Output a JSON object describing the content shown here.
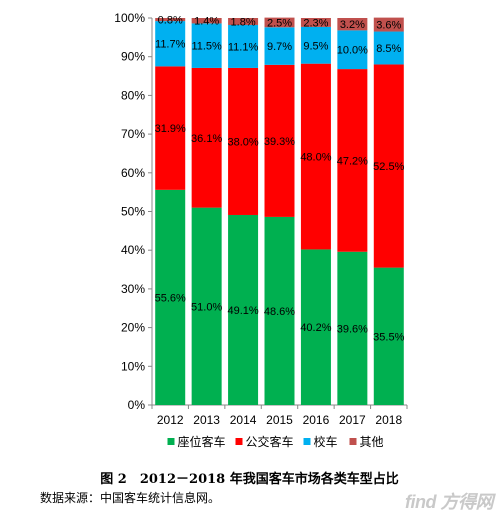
{
  "chart_data": {
    "type": "bar",
    "stacked": true,
    "title": "",
    "xlabel": "",
    "ylabel": "",
    "categories": [
      "2012",
      "2013",
      "2014",
      "2015",
      "2016",
      "2017",
      "2018"
    ],
    "ylim": [
      0,
      100
    ],
    "yticks": [
      "0%",
      "10%",
      "20%",
      "30%",
      "40%",
      "50%",
      "60%",
      "70%",
      "80%",
      "90%",
      "100%"
    ],
    "legend_position": "bottom",
    "grid": false,
    "series": [
      {
        "name": "座位客车",
        "color": "#00b050",
        "values": [
          55.6,
          51.0,
          49.1,
          48.6,
          40.2,
          39.6,
          35.5
        ],
        "labels": [
          "55.6%",
          "51.0%",
          "49.1%",
          "48.6%",
          "40.2%",
          "39.6%",
          "35.5%"
        ]
      },
      {
        "name": "公交客车",
        "color": "#ff0000",
        "values": [
          31.9,
          36.1,
          38.0,
          39.3,
          48.0,
          47.2,
          52.5
        ],
        "labels": [
          "31.9%",
          "36.1%",
          "38.0%",
          "39.3%",
          "48.0%",
          "47.2%",
          "52.5%"
        ]
      },
      {
        "name": "校车",
        "color": "#00b0f0",
        "values": [
          11.7,
          11.5,
          11.1,
          9.7,
          9.5,
          10.0,
          8.5
        ],
        "labels": [
          "11.7%",
          "11.5%",
          "11.1%",
          "9.7%",
          "9.5%",
          "10.0%",
          "8.5%"
        ]
      },
      {
        "name": "其他",
        "color": "#c0504d",
        "values": [
          0.8,
          1.4,
          1.8,
          2.5,
          2.3,
          3.2,
          3.6
        ],
        "labels": [
          "0.8%",
          "1.4%",
          "1.8%",
          "2.5%",
          "2.3%",
          "3.2%",
          "3.6%"
        ]
      }
    ]
  },
  "caption": "图 2　2012－2018 年我国客车市场各类车型占比",
  "source": "数据来源：中国客车统计信息网。",
  "watermark": "find 方得网"
}
